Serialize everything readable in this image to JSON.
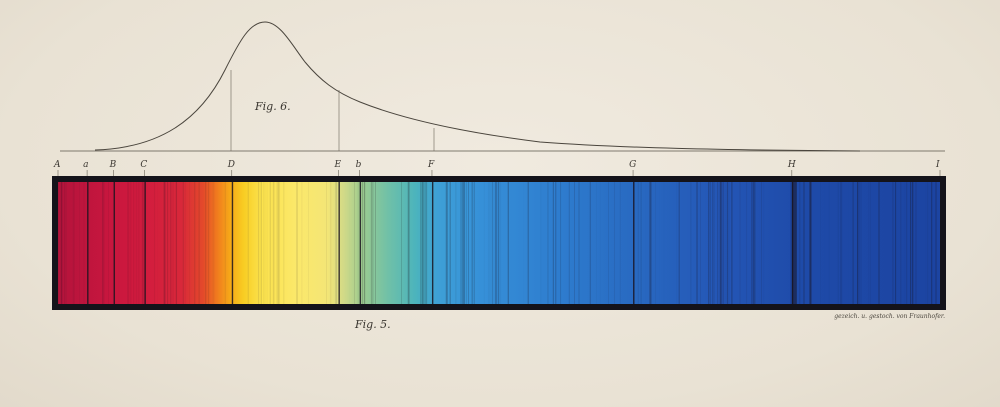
{
  "figures": {
    "fig6_label": "Fig. 6.",
    "fig5_label": "Fig. 5."
  },
  "engraver_note": "gezeich. u. gestoch. von Fraunhofer.",
  "lines": [
    {
      "label": "A",
      "pos": 0.0
    },
    {
      "label": "a",
      "pos": 0.033
    },
    {
      "label": "B",
      "pos": 0.063
    },
    {
      "label": "C",
      "pos": 0.098
    },
    {
      "label": "D",
      "pos": 0.197
    },
    {
      "label": "E",
      "pos": 0.318
    },
    {
      "label": "b",
      "pos": 0.342
    },
    {
      "label": "F",
      "pos": 0.424
    },
    {
      "label": "G",
      "pos": 0.652
    },
    {
      "label": "H",
      "pos": 0.832
    },
    {
      "label": "I",
      "pos": 1.0
    }
  ],
  "colors": {
    "frame": "#14131a",
    "ink": "#3a3630",
    "red": "#c8163e",
    "yellow": "#fbe24c",
    "blue": "#2456b6"
  }
}
